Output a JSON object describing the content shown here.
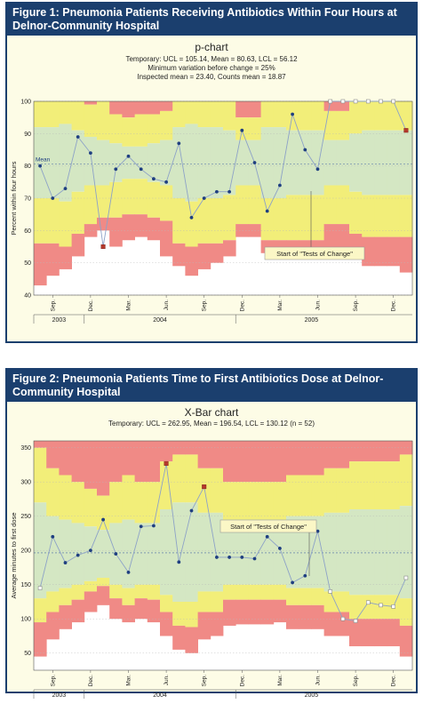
{
  "figure1": {
    "title": "Figure 1: Pneumonia Patients Receiving Antibiotics Within Four Hours at Delnor-Community Hospital",
    "chart_title": "p-chart",
    "subtitle_lines": [
      "Temporary: UCL = 105.14, Mean = 80.63, LCL = 56.12",
      "Minimum variation before change = 25%",
      "Inspected mean = 23.40, Counts mean = 18.87"
    ],
    "annotation": "Start of \"Tests of Change\""
  },
  "figure2": {
    "title": "Figure 2: Pneumonia Patients Time to First Antibiotics Dose at Delnor-Community Hospital",
    "chart_title": "X-Bar chart",
    "subtitle_lines": [
      "Temporary: UCL = 262.95, Mean = 196.54, LCL = 130.12 (n = 52)"
    ],
    "annotation": "Start of \"Tests of Change\""
  },
  "colors": {
    "red_zone": "#f08a86",
    "yellow_zone": "#f2ee79",
    "green_zone": "#d4e7c3",
    "line": "#8da2c7",
    "point": "#1f3f80",
    "highlight_point": "#b5392c",
    "title_bar": "#1b3f6e"
  },
  "chart_data": [
    {
      "type": "line",
      "title": "p-chart",
      "ylabel": "Percent within four hours",
      "ylim": [
        40,
        100
      ],
      "yticks": [
        40,
        50,
        60,
        70,
        80,
        90,
        100
      ],
      "mean_label": "Mean",
      "mean": 80.63,
      "x_tick_labels": [
        "Sep.",
        "Dec.",
        "Mar.",
        "Jun.",
        "Sep.",
        "Dec.",
        "Mar.",
        "Jun.",
        "Sep.",
        "Dec."
      ],
      "years": [
        "2003",
        "2004",
        "2005"
      ],
      "grid": true,
      "series": [
        {
          "values": [
            80,
            70,
            73,
            89,
            84,
            55,
            79,
            83,
            79,
            76,
            75,
            87,
            64,
            70,
            72,
            72,
            91,
            81,
            66,
            74,
            96,
            85,
            79,
            100,
            100,
            100,
            100,
            100,
            100,
            91
          ],
          "point_status": [
            "normal",
            "normal",
            "normal",
            "normal",
            "normal",
            "special",
            "normal",
            "normal",
            "normal",
            "normal",
            "normal",
            "normal",
            "normal",
            "normal",
            "normal",
            "normal",
            "normal",
            "normal",
            "normal",
            "normal",
            "normal",
            "normal",
            "normal",
            "open",
            "open",
            "open",
            "open",
            "open",
            "open",
            "special"
          ]
        }
      ],
      "ucl": [
        100,
        100,
        100,
        100,
        99,
        100,
        96,
        95,
        96,
        96,
        97,
        100,
        100,
        100,
        100,
        100,
        95,
        95,
        100,
        100,
        100,
        100,
        100,
        97,
        97,
        100,
        100,
        100,
        100,
        100
      ],
      "zone_upper": [
        92,
        92,
        93,
        91,
        89,
        88,
        87,
        86,
        86,
        87,
        88,
        92,
        93,
        92,
        92,
        91,
        88,
        88,
        92,
        92,
        91,
        91,
        91,
        88,
        88,
        90,
        91,
        91,
        91,
        91
      ],
      "zone_lower": [
        70,
        70,
        69,
        72,
        74,
        74,
        75,
        76,
        76,
        75,
        74,
        70,
        69,
        70,
        70,
        71,
        74,
        74,
        70,
        70,
        71,
        71,
        71,
        74,
        74,
        72,
        71,
        71,
        71,
        71
      ],
      "lcl": [
        56,
        56,
        55,
        59,
        62,
        64,
        64,
        65,
        65,
        64,
        63,
        56,
        55,
        56,
        56,
        57,
        62,
        62,
        57,
        57,
        57,
        57,
        57,
        62,
        62,
        59,
        58,
        58,
        58,
        58
      ],
      "lcl_bottom": [
        43,
        46,
        48,
        52,
        58,
        60,
        55,
        57,
        58,
        57,
        52,
        49,
        46,
        48,
        50,
        52,
        58,
        58,
        53,
        53,
        53,
        53,
        53,
        53,
        52,
        51,
        49,
        49,
        49,
        47
      ]
    },
    {
      "type": "line",
      "title": "X-Bar chart",
      "ylabel": "Average minutes to first dose",
      "ylim": [
        25,
        360
      ],
      "yticks": [
        50,
        100,
        150,
        200,
        250,
        300,
        350
      ],
      "mean": 196.54,
      "x_tick_labels": [
        "Sep.",
        "Dec.",
        "Mar.",
        "Jun.",
        "Sep.",
        "Dec.",
        "Mar.",
        "Jun.",
        "Sep.",
        "Dec."
      ],
      "years": [
        "2003",
        "2004",
        "2005"
      ],
      "grid": true,
      "series": [
        {
          "values": [
            145,
            220,
            182,
            193,
            200,
            245,
            195,
            168,
            235,
            236,
            327,
            183,
            258,
            293,
            190,
            190,
            190,
            188,
            220,
            203,
            153,
            163,
            228,
            140,
            100,
            97,
            124,
            120,
            118,
            160
          ],
          "point_status": [
            "open",
            "normal",
            "normal",
            "normal",
            "normal",
            "normal",
            "normal",
            "normal",
            "normal",
            "normal",
            "special",
            "normal",
            "normal",
            "special",
            "normal",
            "normal",
            "normal",
            "normal",
            "normal",
            "normal",
            "normal",
            "normal",
            "normal",
            "open",
            "open",
            "open",
            "open",
            "open",
            "open",
            "open"
          ]
        }
      ],
      "ucl": [
        350,
        320,
        310,
        300,
        290,
        280,
        300,
        310,
        300,
        300,
        330,
        340,
        340,
        320,
        320,
        300,
        300,
        300,
        300,
        300,
        310,
        310,
        310,
        320,
        320,
        330,
        330,
        330,
        330,
        340
      ],
      "zone_upper": [
        270,
        250,
        245,
        240,
        235,
        230,
        240,
        245,
        240,
        240,
        260,
        270,
        270,
        255,
        255,
        245,
        245,
        245,
        245,
        245,
        250,
        250,
        250,
        255,
        255,
        260,
        260,
        260,
        260,
        265
      ],
      "zone_lower": [
        130,
        140,
        145,
        150,
        155,
        160,
        150,
        145,
        150,
        150,
        135,
        125,
        125,
        140,
        140,
        150,
        150,
        150,
        150,
        150,
        145,
        145,
        145,
        140,
        140,
        135,
        135,
        135,
        135,
        130
      ],
      "lcl": [
        95,
        110,
        120,
        128,
        140,
        148,
        130,
        120,
        130,
        128,
        110,
        90,
        88,
        110,
        110,
        128,
        128,
        128,
        128,
        128,
        120,
        120,
        120,
        110,
        110,
        100,
        100,
        100,
        100,
        90
      ],
      "lcl_bottom": [
        45,
        70,
        85,
        95,
        110,
        120,
        100,
        95,
        100,
        95,
        75,
        55,
        50,
        70,
        75,
        90,
        92,
        92,
        92,
        95,
        85,
        85,
        85,
        75,
        75,
        60,
        60,
        60,
        60,
        45
      ]
    }
  ]
}
